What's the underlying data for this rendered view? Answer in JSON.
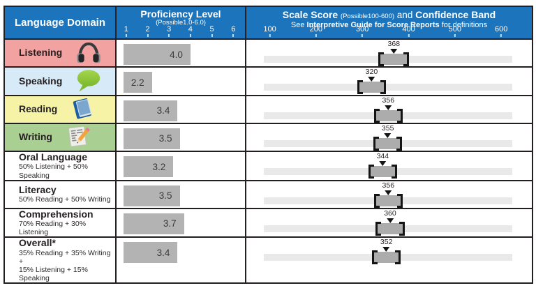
{
  "header": {
    "domain_col": "Language Domain",
    "proficiency": {
      "title": "Proficiency Level",
      "subtitle": "(Possible1.0-6.0)",
      "ticks": [
        "1",
        "2",
        "3",
        "4",
        "5",
        "6"
      ]
    },
    "scale": {
      "title_bold1": "Scale Score",
      "title_small": "(Possible100-600)",
      "title_mid": "and",
      "title_bold2": "Confidence Band",
      "subtitle_prefix": "See",
      "subtitle_bold": "Interpretive Guide for Score Reports",
      "subtitle_suffix": "for definitions",
      "ticks": [
        "100",
        "200",
        "300",
        "400",
        "500",
        "600"
      ]
    }
  },
  "rows": [
    {
      "label": "Listening",
      "sublabel": "",
      "icon": "headphones-icon",
      "bg": "#F2A3A1",
      "proficiency": 4.0,
      "proficiency_label": "4.0",
      "score": 368,
      "score_label": "368",
      "band_low": 338,
      "band_high": 398
    },
    {
      "label": "Speaking",
      "sublabel": "",
      "icon": "speech-bubble-icon",
      "bg": "#D6EAF8",
      "proficiency": 2.2,
      "proficiency_label": "2.2",
      "score": 320,
      "score_label": "320",
      "band_low": 292,
      "band_high": 348
    },
    {
      "label": "Reading",
      "sublabel": "",
      "icon": "book-icon",
      "bg": "#F7F3A6",
      "proficiency": 3.4,
      "proficiency_label": "3.4",
      "score": 356,
      "score_label": "356",
      "band_low": 328,
      "band_high": 384
    },
    {
      "label": "Writing",
      "sublabel": "",
      "icon": "pencil-paper-icon",
      "bg": "#A9CF92",
      "proficiency": 3.5,
      "proficiency_label": "3.5",
      "score": 355,
      "score_label": "355",
      "band_low": 327,
      "band_high": 383
    },
    {
      "label": "Oral Language",
      "sublabel": "50% Listening + 50% Speaking",
      "icon": "",
      "bg": "#FFFFFF",
      "proficiency": 3.2,
      "proficiency_label": "3.2",
      "score": 344,
      "score_label": "344",
      "band_low": 316,
      "band_high": 372
    },
    {
      "label": "Literacy",
      "sublabel": "50% Reading + 50% Writing",
      "icon": "",
      "bg": "#FFFFFF",
      "proficiency": 3.5,
      "proficiency_label": "3.5",
      "score": 356,
      "score_label": "356",
      "band_low": 328,
      "band_high": 384
    },
    {
      "label": "Comprehension",
      "sublabel": "70% Reading + 30% Listening",
      "icon": "",
      "bg": "#FFFFFF",
      "proficiency": 3.7,
      "proficiency_label": "3.7",
      "score": 360,
      "score_label": "360",
      "band_low": 332,
      "band_high": 388
    },
    {
      "label": "Overall*",
      "sublabel": "35% Reading + 35% Writing +\n15% Listening + 15% Speaking",
      "icon": "",
      "bg": "#FFFFFF",
      "proficiency": 3.4,
      "proficiency_label": "3.4",
      "score": 352,
      "score_label": "352",
      "band_low": 324,
      "band_high": 380
    }
  ],
  "colors": {
    "header_bg": "#1C75BC",
    "border": "#231F20",
    "bar_gray": "#B3B3B3",
    "track_gray": "#E9E9E9",
    "band_gray": "#ACACAC",
    "listening_bg": "#F2A3A1",
    "speaking_bg": "#D6EAF8",
    "reading_bg": "#F7F3A6",
    "writing_bg": "#A9CF92"
  },
  "chart_data": {
    "type": "bar",
    "categories": [
      "Listening",
      "Speaking",
      "Reading",
      "Writing",
      "Oral Language",
      "Literacy",
      "Comprehension",
      "Overall*"
    ],
    "series": [
      {
        "name": "Proficiency Level (Possible 1.0-6.0)",
        "values": [
          4.0,
          2.2,
          3.4,
          3.5,
          3.2,
          3.5,
          3.7,
          3.4
        ]
      },
      {
        "name": "Scale Score (Possible 100-600)",
        "values": [
          368,
          320,
          356,
          355,
          344,
          356,
          360,
          352
        ]
      }
    ],
    "confidence_bands": [
      [
        338,
        398
      ],
      [
        292,
        348
      ],
      [
        328,
        384
      ],
      [
        327,
        383
      ],
      [
        316,
        372
      ],
      [
        328,
        384
      ],
      [
        332,
        388
      ],
      [
        324,
        380
      ]
    ],
    "proficiency_axis": {
      "range": [
        1,
        6
      ],
      "ticks": [
        1,
        2,
        3,
        4,
        5,
        6
      ]
    },
    "scale_axis": {
      "range": [
        100,
        600
      ],
      "ticks": [
        100,
        200,
        300,
        400,
        500,
        600
      ]
    },
    "title": "Scale Score and Confidence Band",
    "grid": false,
    "legend_position": "none"
  }
}
